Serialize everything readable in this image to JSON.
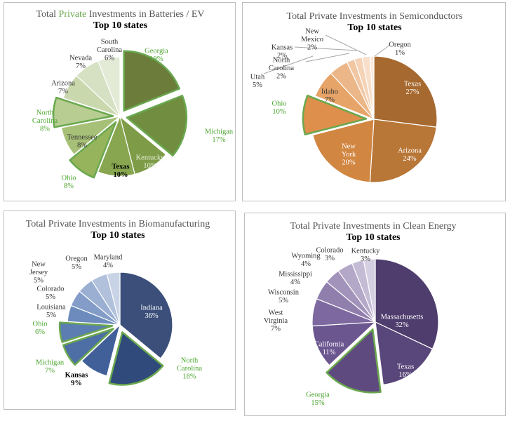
{
  "chart_data": [
    {
      "type": "pie",
      "title_prefix": "Total ",
      "title_highlight": "Private",
      "title_suffix": " Investments in Batteries / EV",
      "subtitle": "Top 10 states",
      "start_angle_deg": 0,
      "slices": [
        {
          "state": "Georgia",
          "value": 19,
          "label": "19%",
          "color": "#6b7c3b",
          "explode": true,
          "label_color": "#4aa52e"
        },
        {
          "state": "Michigan",
          "value": 17,
          "label": "17%",
          "color": "#718d3f",
          "explode": true,
          "label_color": "#4aa52e"
        },
        {
          "state": "Kentucky",
          "value": 10,
          "label": "10%",
          "color": "#7e9c48",
          "explode": false,
          "label_color": "#e8efd8"
        },
        {
          "state": "Texas",
          "value": 10,
          "label": "10%",
          "color": "#87a64f",
          "explode": false,
          "label_color": "#000000",
          "bold": true
        },
        {
          "state": "Ohio",
          "value": 8,
          "label": "8%",
          "color": "#96b45b",
          "explode": true,
          "label_color": "#4aa52e"
        },
        {
          "state": "Tennessee",
          "value": 8,
          "label": "8%",
          "color": "#a7c077",
          "explode": false,
          "label_color": "#333333"
        },
        {
          "state": "North Carolina",
          "value": 8,
          "label": "8%",
          "color": "#b8cd92",
          "explode": true,
          "label_color": "#4aa52e"
        },
        {
          "state": "Arizona",
          "value": 7,
          "label": "7%",
          "color": "#c9d8ad",
          "explode": false,
          "label_color": "#333333"
        },
        {
          "state": "Nevada",
          "value": 7,
          "label": "7%",
          "color": "#d6e1c3",
          "explode": false,
          "label_color": "#333333"
        },
        {
          "state": "South Carolina",
          "value": 6,
          "label": "6%",
          "color": "#e3ead6",
          "explode": false,
          "label_color": "#333333"
        }
      ]
    },
    {
      "type": "pie",
      "title_prefix": "Total Private Investments in Semiconductors",
      "title_highlight": "",
      "title_suffix": "",
      "subtitle": "Top 10 states",
      "start_angle_deg": 0,
      "slices": [
        {
          "state": "Texas",
          "value": 27,
          "label": "27%",
          "color": "#a6692f",
          "explode": false,
          "label_color": "#ffffff"
        },
        {
          "state": "Arizona",
          "value": 24,
          "label": "24%",
          "color": "#b87637",
          "explode": false,
          "label_color": "#ffffff"
        },
        {
          "state": "New York",
          "value": 20,
          "label": "20%",
          "color": "#d18642",
          "explode": false,
          "label_color": "#ffffff"
        },
        {
          "state": "Ohio",
          "value": 10,
          "label": "10%",
          "color": "#dd8f4b",
          "explode": true,
          "label_color": "#4aa52e"
        },
        {
          "state": "Idaho",
          "value": 7,
          "label": "7%",
          "color": "#e6a468",
          "explode": false,
          "label_color": "#333333"
        },
        {
          "state": "Utah",
          "value": 5,
          "label": "5%",
          "color": "#ecb788",
          "explode": false,
          "label_color": "#333333"
        },
        {
          "state": "North Carolina",
          "value": 2,
          "label": "2%",
          "color": "#f1c7a3",
          "explode": false,
          "label_color": "#333333"
        },
        {
          "state": "Kansas",
          "value": 2,
          "label": "2%",
          "color": "#f4d3b7",
          "explode": false,
          "label_color": "#333333"
        },
        {
          "state": "New Mexico",
          "value": 2,
          "label": "2%",
          "color": "#f7dfcb",
          "explode": false,
          "label_color": "#333333"
        },
        {
          "state": "Oregon",
          "value": 1,
          "label": "1%",
          "color": "#fae9dc",
          "explode": false,
          "label_color": "#333333"
        }
      ]
    },
    {
      "type": "pie",
      "title_prefix": "Total Private Investments in Biomanufacturing",
      "title_highlight": "",
      "title_suffix": "",
      "subtitle": "Top 10 states",
      "start_angle_deg": 0,
      "slices": [
        {
          "state": "Indiana",
          "value": 36,
          "label": "36%",
          "color": "#3b4f7a",
          "explode": false,
          "label_color": "#ffffff"
        },
        {
          "state": "North Carolina",
          "value": 18,
          "label": "18%",
          "color": "#2f4a7b",
          "explode": true,
          "label_color": "#4aa52e"
        },
        {
          "state": "Kansas",
          "value": 9,
          "label": "9%",
          "color": "#41609a",
          "explode": false,
          "label_color": "#000000",
          "bold": true
        },
        {
          "state": "Michigan",
          "value": 7,
          "label": "7%",
          "color": "#4e6ea6",
          "explode": true,
          "label_color": "#4aa52e"
        },
        {
          "state": "Ohio",
          "value": 6,
          "label": "6%",
          "color": "#5b7db2",
          "explode": true,
          "label_color": "#4aa52e"
        },
        {
          "state": "Louisiana",
          "value": 5,
          "label": "5%",
          "color": "#6d8cbd",
          "explode": false,
          "label_color": "#333333"
        },
        {
          "state": "Colorado",
          "value": 5,
          "label": "5%",
          "color": "#839dc8",
          "explode": false,
          "label_color": "#333333"
        },
        {
          "state": "New Jersey",
          "value": 5,
          "label": "5%",
          "color": "#9aafd2",
          "explode": false,
          "label_color": "#333333"
        },
        {
          "state": "Oregon",
          "value": 5,
          "label": "5%",
          "color": "#b1c1dc",
          "explode": false,
          "label_color": "#333333"
        },
        {
          "state": "Maryland",
          "value": 4,
          "label": "4%",
          "color": "#c8d3e6",
          "explode": false,
          "label_color": "#333333"
        }
      ]
    },
    {
      "type": "pie",
      "title_prefix": "Total Private Investments in Clean Energy",
      "title_highlight": "",
      "title_suffix": "",
      "subtitle": "Top 10 states",
      "start_angle_deg": 0,
      "slices": [
        {
          "state": "Massachusetts",
          "value": 32,
          "label": "32%",
          "color": "#4e3d6d",
          "explode": false,
          "label_color": "#ffffff"
        },
        {
          "state": "Texas",
          "value": 16,
          "label": "16%",
          "color": "#59467a",
          "explode": false,
          "label_color": "#ffffff"
        },
        {
          "state": "Georgia",
          "value": 15,
          "label": "15%",
          "color": "#5f4a80",
          "explode": true,
          "label_color": "#4aa52e"
        },
        {
          "state": "California",
          "value": 11,
          "label": "11%",
          "color": "#6c5690",
          "explode": false,
          "label_color": "#ffffff"
        },
        {
          "state": "West Virginia",
          "value": 7,
          "label": "7%",
          "color": "#7d69a0",
          "explode": false,
          "label_color": "#333333"
        },
        {
          "state": "Wisconsin",
          "value": 5,
          "label": "5%",
          "color": "#907ead",
          "explode": false,
          "label_color": "#333333"
        },
        {
          "state": "Mississippi",
          "value": 4,
          "label": "4%",
          "color": "#a193ba",
          "explode": false,
          "label_color": "#333333"
        },
        {
          "state": "Wyoming",
          "value": 4,
          "label": "4%",
          "color": "#b3a8c8",
          "explode": false,
          "label_color": "#333333"
        },
        {
          "state": "Colorado",
          "value": 3,
          "label": "3%",
          "color": "#c4bcd5",
          "explode": false,
          "label_color": "#333333"
        },
        {
          "state": "Kentucky",
          "value": 3,
          "label": "3%",
          "color": "#d5cfe2",
          "explode": false,
          "label_color": "#333333"
        }
      ]
    }
  ],
  "highlight_color": "#6aa84f"
}
